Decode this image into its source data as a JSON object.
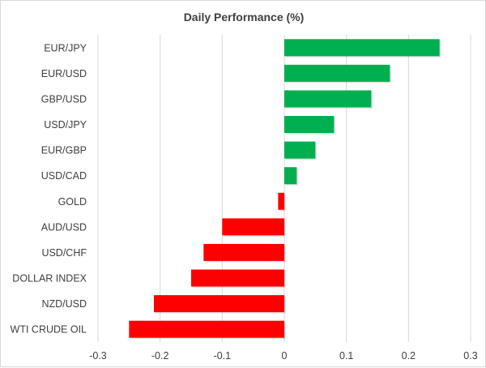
{
  "chart_data": {
    "type": "bar",
    "orientation": "horizontal",
    "title": "Daily Performance (%)",
    "xlabel": "",
    "ylabel": "",
    "categories": [
      "EUR/JPY",
      "EUR/USD",
      "GBP/USD",
      "USD/JPY",
      "EUR/GBP",
      "USD/CAD",
      "GOLD",
      "AUD/USD",
      "USD/CHF",
      "DOLLAR INDEX",
      "NZD/USD",
      "WTI CRUDE OIL"
    ],
    "values": [
      0.25,
      0.17,
      0.14,
      0.08,
      0.05,
      0.02,
      -0.01,
      -0.1,
      -0.13,
      -0.15,
      -0.21,
      -0.25
    ],
    "xlim": [
      -0.3,
      0.3
    ],
    "xticks": [
      "-0.3",
      "-0.2",
      "-0.1",
      "0",
      "0.1",
      "0.2",
      "0.3"
    ],
    "grid": true,
    "legend": "none",
    "colors": {
      "positive": "#00b050",
      "negative": "#ff0000",
      "grid": "#d9d9d9",
      "text": "#404040"
    }
  }
}
